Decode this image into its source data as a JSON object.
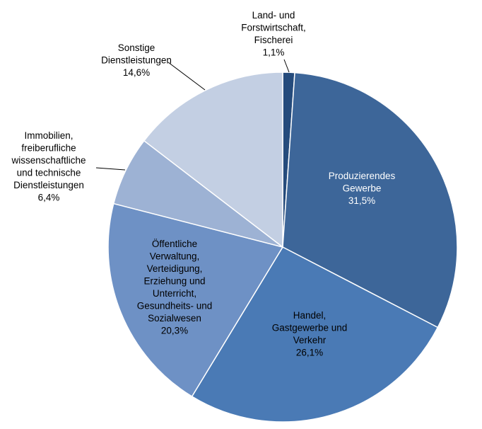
{
  "chart_data": {
    "type": "pie",
    "title": "",
    "slices": [
      {
        "label_lines": [
          "Land- und",
          "Forstwirtschaft,",
          "Fischerei"
        ],
        "value_label": "1,1%",
        "value": 1.1,
        "color": "#254b7c"
      },
      {
        "label_lines": [
          "Produzierendes",
          "Gewerbe"
        ],
        "value_label": "31,5%",
        "value": 31.5,
        "color": "#3d6699"
      },
      {
        "label_lines": [
          "Handel,",
          "Gastgewerbe und",
          "Verkehr"
        ],
        "value_label": "26,1%",
        "value": 26.1,
        "color": "#4a7ab5"
      },
      {
        "label_lines": [
          "Öffentliche",
          "Verwaltung,",
          "Verteidigung,",
          "Erziehung und",
          "Unterricht,",
          "Gesundheits- und",
          "Sozialwesen"
        ],
        "value_label": "20,3%",
        "value": 20.3,
        "color": "#6e91c5"
      },
      {
        "label_lines": [
          "Immobilien,",
          "freiberufliche",
          "wissenschaftliche",
          "und technische",
          "Dienstleistungen"
        ],
        "value_label": "6,4%",
        "value": 6.4,
        "color": "#9db2d4"
      },
      {
        "label_lines": [
          "Sonstige",
          "Dienstleistungen"
        ],
        "value_label": "14,6%",
        "value": 14.6,
        "color": "#c3cfe3"
      }
    ],
    "legend": "none"
  }
}
